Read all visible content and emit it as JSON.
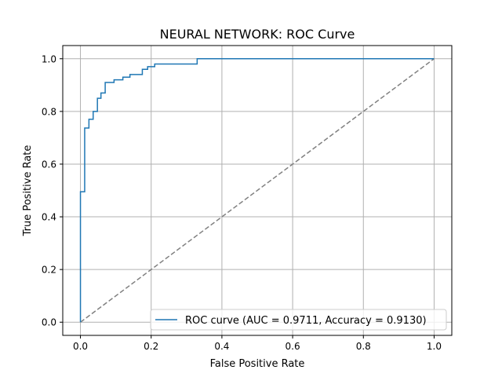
{
  "chart_data": {
    "type": "line",
    "title": "NEURAL NETWORK: ROC Curve",
    "xlabel": "False Positive Rate",
    "ylabel": "True Positive Rate",
    "xlim": [
      -0.05,
      1.05
    ],
    "ylim": [
      -0.05,
      1.05
    ],
    "xticks": [
      0.0,
      0.2,
      0.4,
      0.6,
      0.8,
      1.0
    ],
    "xtick_labels": [
      "0.0",
      "0.2",
      "0.4",
      "0.6",
      "0.8",
      "1.0"
    ],
    "yticks": [
      0.0,
      0.2,
      0.4,
      0.6,
      0.8,
      1.0
    ],
    "ytick_labels": [
      "0.0",
      "0.2",
      "0.4",
      "0.6",
      "0.8",
      "1.0"
    ],
    "grid": true,
    "legend_position": "lower-right",
    "series": [
      {
        "name": "ROC curve (AUC = 0.9711, Accuracy = 0.9130)",
        "color": "#1f77b4",
        "style": "solid",
        "x": [
          0.0,
          0.0,
          0.0,
          0.012,
          0.012,
          0.024,
          0.024,
          0.036,
          0.036,
          0.048,
          0.048,
          0.058,
          0.058,
          0.07,
          0.07,
          0.095,
          0.095,
          0.12,
          0.12,
          0.14,
          0.14,
          0.175,
          0.175,
          0.19,
          0.19,
          0.21,
          0.21,
          0.33,
          0.33,
          1.0
        ],
        "y": [
          0.0,
          0.0,
          0.495,
          0.495,
          0.737,
          0.737,
          0.77,
          0.77,
          0.8,
          0.8,
          0.85,
          0.85,
          0.87,
          0.87,
          0.91,
          0.91,
          0.92,
          0.92,
          0.93,
          0.93,
          0.94,
          0.94,
          0.96,
          0.96,
          0.97,
          0.97,
          0.98,
          0.98,
          1.0,
          1.0
        ]
      },
      {
        "name": "",
        "color": "#808080",
        "style": "dashed",
        "x": [
          0.0,
          1.0
        ],
        "y": [
          0.0,
          1.0
        ]
      }
    ]
  }
}
